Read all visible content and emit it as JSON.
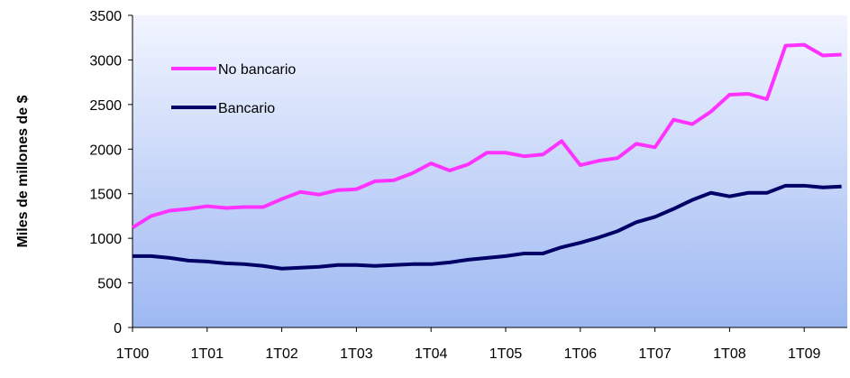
{
  "chart_data": {
    "type": "line",
    "y_label": "Miles de millones de $",
    "categories": [
      "1T00",
      null,
      null,
      null,
      "1T01",
      null,
      null,
      null,
      "1T02",
      null,
      null,
      null,
      "1T03",
      null,
      null,
      null,
      "1T04",
      null,
      null,
      null,
      "1T05",
      null,
      null,
      null,
      "1T06",
      null,
      null,
      null,
      "1T07",
      null,
      null,
      null,
      "1T08",
      null,
      null,
      null,
      "1T09",
      null,
      null
    ],
    "series": [
      {
        "name": "No bancario",
        "color": "#ff33ff",
        "values": [
          1120,
          1250,
          1310,
          1330,
          1360,
          1340,
          1350,
          1350,
          1440,
          1520,
          1490,
          1540,
          1550,
          1640,
          1650,
          1730,
          1840,
          1760,
          1830,
          1960,
          1960,
          1920,
          1940,
          2090,
          1820,
          1870,
          1900,
          2060,
          2020,
          2330,
          2280,
          2420,
          2610,
          2620,
          2560,
          3160,
          3170,
          3050,
          3060
        ]
      },
      {
        "name": "Bancario",
        "color": "#000066",
        "values": [
          800,
          800,
          780,
          750,
          740,
          720,
          710,
          690,
          660,
          670,
          680,
          700,
          700,
          690,
          700,
          710,
          710,
          730,
          760,
          780,
          800,
          830,
          830,
          900,
          950,
          1010,
          1080,
          1180,
          1240,
          1330,
          1430,
          1510,
          1470,
          1510,
          1510,
          1590,
          1590,
          1570,
          1580
        ]
      }
    ],
    "ylim": [
      0,
      3500
    ],
    "yticks": [
      0,
      500,
      1000,
      1500,
      2000,
      2500,
      3000,
      3500
    ],
    "grid": false,
    "legend": "top-left"
  }
}
